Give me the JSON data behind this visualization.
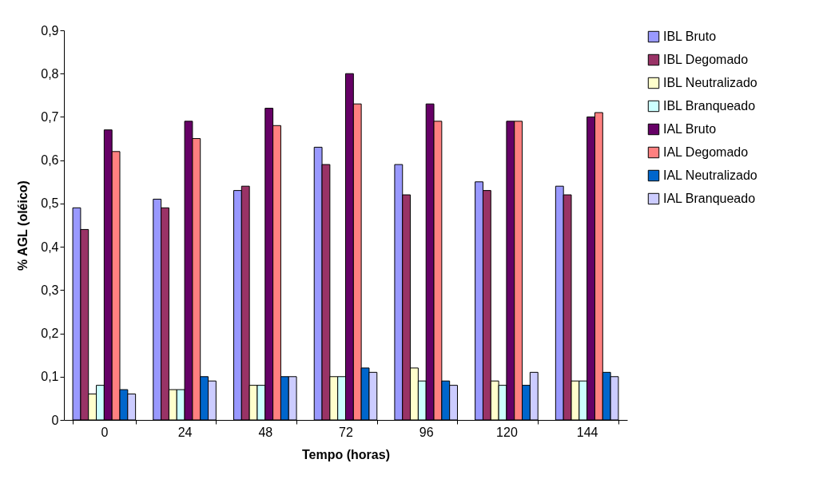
{
  "chart_data": {
    "type": "bar",
    "xlabel": "Tempo (horas)",
    "ylabel": "% AGL (oléico)",
    "categories": [
      "0",
      "24",
      "48",
      "72",
      "96",
      "120",
      "144"
    ],
    "series": [
      {
        "name": "IBL Bruto",
        "color": "#9999ff",
        "values": [
          0.49,
          0.51,
          0.53,
          0.63,
          0.59,
          0.55,
          0.54
        ]
      },
      {
        "name": "IBL Degomado",
        "color": "#993366",
        "values": [
          0.44,
          0.49,
          0.54,
          0.59,
          0.52,
          0.53,
          0.52
        ]
      },
      {
        "name": "IBL Neutralizado",
        "color": "#ffffcc",
        "values": [
          0.06,
          0.07,
          0.08,
          0.1,
          0.12,
          0.09,
          0.09
        ]
      },
      {
        "name": "IBL Branqueado",
        "color": "#ccffff",
        "values": [
          0.08,
          0.07,
          0.08,
          0.1,
          0.09,
          0.08,
          0.09
        ]
      },
      {
        "name": "IAL Bruto",
        "color": "#660066",
        "values": [
          0.67,
          0.69,
          0.72,
          0.8,
          0.73,
          0.69,
          0.7
        ]
      },
      {
        "name": "IAL Degomado",
        "color": "#ff8080",
        "values": [
          0.62,
          0.65,
          0.68,
          0.73,
          0.69,
          0.69,
          0.71
        ]
      },
      {
        "name": "IAL Neutralizado",
        "color": "#0066cc",
        "values": [
          0.07,
          0.1,
          0.1,
          0.12,
          0.09,
          0.08,
          0.11
        ]
      },
      {
        "name": "IAL Branqueado",
        "color": "#ccccff",
        "values": [
          0.06,
          0.09,
          0.1,
          0.11,
          0.08,
          0.11,
          0.1
        ]
      }
    ],
    "ylim": [
      0,
      0.9
    ],
    "yticks": [
      {
        "value": 0,
        "label": "0"
      },
      {
        "value": 0.1,
        "label": "0,1"
      },
      {
        "value": 0.2,
        "label": "0,2"
      },
      {
        "value": 0.3,
        "label": "0,3"
      },
      {
        "value": 0.4,
        "label": "0,4"
      },
      {
        "value": 0.5,
        "label": "0,5"
      },
      {
        "value": 0.6,
        "label": "0,6"
      },
      {
        "value": 0.7,
        "label": "0,7"
      },
      {
        "value": 0.8,
        "label": "0,8"
      },
      {
        "value": 0.9,
        "label": "0,9"
      }
    ],
    "grid": false,
    "legend": "right"
  }
}
